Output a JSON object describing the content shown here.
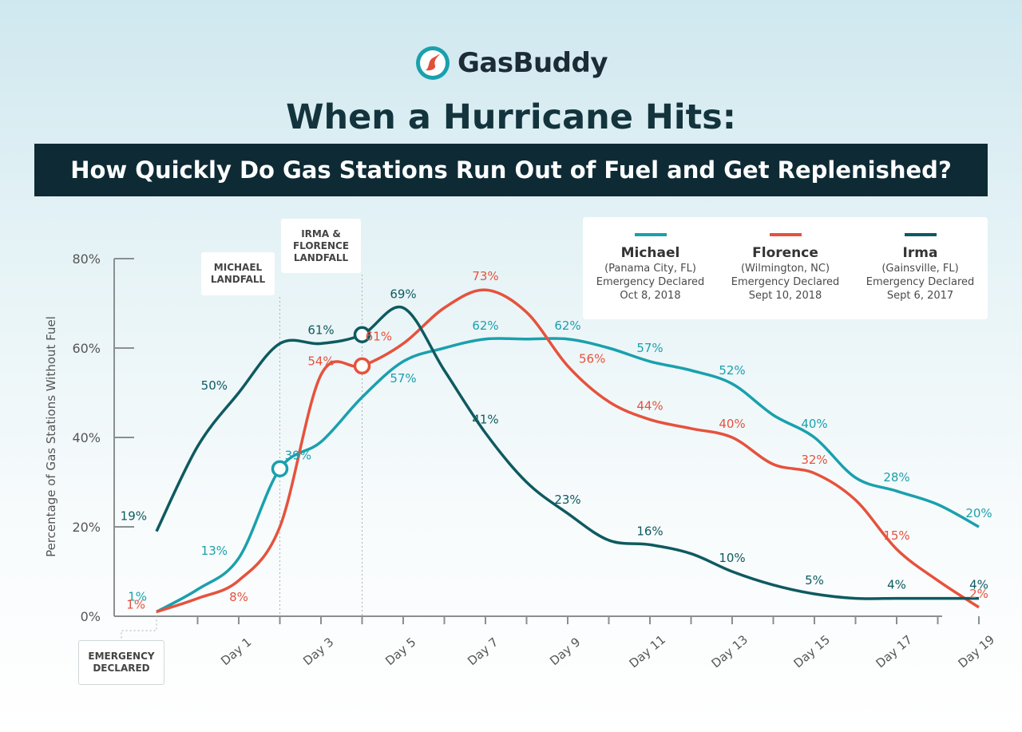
{
  "brand": {
    "name": "GasBuddy",
    "logo_icon": "road-drop-icon",
    "accent": "#e1503b",
    "teal": "#12a0a8"
  },
  "header": {
    "title": "When a Hurricane Hits:",
    "subtitle": "How Quickly Do Gas Stations Run Out of Fuel and Get Replenished?"
  },
  "callouts": {
    "emergency": [
      "EMERGENCY",
      "DECLARED"
    ],
    "michael": [
      "MICHAEL",
      "LANDFALL"
    ],
    "irma_florence": [
      "IRMA &",
      "FLORENCE",
      "LANDFALL"
    ]
  },
  "chart_data": {
    "type": "line",
    "ylabel": "Percentage of Gas Stations Without Fuel",
    "xlabel": "",
    "ylim": [
      0,
      80
    ],
    "yticks": [
      "0%",
      "20%",
      "40%",
      "60%",
      "80%"
    ],
    "xlim": [
      -1,
      19
    ],
    "xticks": [
      "Day 1",
      "Day 3",
      "Day 5",
      "Day 7",
      "Day 9",
      "Day 11",
      "Day 13",
      "Day 15",
      "Day 17",
      "Day 19"
    ],
    "legend": "top-right",
    "series": [
      {
        "name": "Michael",
        "detail": [
          "(Panama City, FL)",
          "Emergency Declared",
          "Oct 8, 2018"
        ],
        "color": "#1aa0ad",
        "points": [
          [
            -1,
            1
          ],
          [
            0,
            6
          ],
          [
            1,
            13
          ],
          [
            2,
            33
          ],
          [
            3,
            39
          ],
          [
            4,
            49
          ],
          [
            5,
            57
          ],
          [
            6,
            60
          ],
          [
            7,
            62
          ],
          [
            8,
            62
          ],
          [
            9,
            62
          ],
          [
            10,
            60
          ],
          [
            11,
            57
          ],
          [
            12,
            55
          ],
          [
            13,
            52
          ],
          [
            14,
            45
          ],
          [
            15,
            40
          ],
          [
            16,
            31
          ],
          [
            17,
            28
          ],
          [
            18,
            25
          ],
          [
            19,
            20
          ]
        ],
        "labels": [
          {
            "x": -1,
            "text": "1%",
            "pos": "above-left"
          },
          {
            "x": 1,
            "text": "13%",
            "pos": "left"
          },
          {
            "x": 3,
            "text": "39%",
            "pos": "below-left"
          },
          {
            "x": 5,
            "text": "57%",
            "pos": "below"
          },
          {
            "x": 7,
            "text": "62%",
            "pos": "above"
          },
          {
            "x": 9,
            "text": "62%",
            "pos": "above"
          },
          {
            "x": 11,
            "text": "57%",
            "pos": "above"
          },
          {
            "x": 13,
            "text": "52%",
            "pos": "above"
          },
          {
            "x": 15,
            "text": "40%",
            "pos": "above"
          },
          {
            "x": 17,
            "text": "28%",
            "pos": "above"
          },
          {
            "x": 19,
            "text": "20%",
            "pos": "above"
          }
        ]
      },
      {
        "name": "Florence",
        "detail": [
          "(Wilmington, NC)",
          "Emergency Declared",
          "Sept 10, 2018"
        ],
        "color": "#e6523c",
        "points": [
          [
            -1,
            1
          ],
          [
            0,
            4
          ],
          [
            1,
            8
          ],
          [
            2,
            20
          ],
          [
            3,
            54
          ],
          [
            4,
            56
          ],
          [
            5,
            61
          ],
          [
            6,
            69
          ],
          [
            7,
            73
          ],
          [
            8,
            68
          ],
          [
            9,
            56
          ],
          [
            10,
            48
          ],
          [
            11,
            44
          ],
          [
            12,
            42
          ],
          [
            13,
            40
          ],
          [
            14,
            34
          ],
          [
            15,
            32
          ],
          [
            16,
            26
          ],
          [
            17,
            15
          ],
          [
            18,
            8
          ],
          [
            19,
            2
          ]
        ],
        "labels": [
          {
            "x": -1,
            "text": "1%",
            "pos": "left"
          },
          {
            "x": 1,
            "text": "8%",
            "pos": "below"
          },
          {
            "x": 3,
            "text": "54%",
            "pos": "above"
          },
          {
            "x": 5,
            "text": "61%",
            "pos": "left"
          },
          {
            "x": 7,
            "text": "73%",
            "pos": "above"
          },
          {
            "x": 9,
            "text": "56%",
            "pos": "right"
          },
          {
            "x": 11,
            "text": "44%",
            "pos": "above"
          },
          {
            "x": 13,
            "text": "40%",
            "pos": "above"
          },
          {
            "x": 15,
            "text": "32%",
            "pos": "above"
          },
          {
            "x": 17,
            "text": "15%",
            "pos": "above"
          },
          {
            "x": 19,
            "text": "2%",
            "pos": "above"
          }
        ]
      },
      {
        "name": "Irma",
        "detail": [
          "(Gainsville, FL)",
          "Emergency Declared",
          "Sept 6, 2017"
        ],
        "color": "#0e5a60",
        "points": [
          [
            -1,
            19
          ],
          [
            0,
            38
          ],
          [
            1,
            50
          ],
          [
            2,
            61
          ],
          [
            3,
            61
          ],
          [
            4,
            63
          ],
          [
            5,
            69
          ],
          [
            6,
            55
          ],
          [
            7,
            41
          ],
          [
            8,
            30
          ],
          [
            9,
            23
          ],
          [
            10,
            17
          ],
          [
            11,
            16
          ],
          [
            12,
            14
          ],
          [
            13,
            10
          ],
          [
            14,
            7
          ],
          [
            15,
            5
          ],
          [
            16,
            4
          ],
          [
            17,
            4
          ],
          [
            18,
            4
          ],
          [
            19,
            4
          ]
        ],
        "labels": [
          {
            "x": -1,
            "text": "19%",
            "pos": "above-left"
          },
          {
            "x": 1,
            "text": "50%",
            "pos": "left"
          },
          {
            "x": 3,
            "text": "61%",
            "pos": "above"
          },
          {
            "x": 5,
            "text": "69%",
            "pos": "above"
          },
          {
            "x": 7,
            "text": "41%",
            "pos": "above"
          },
          {
            "x": 9,
            "text": "23%",
            "pos": "above"
          },
          {
            "x": 11,
            "text": "16%",
            "pos": "above"
          },
          {
            "x": 13,
            "text": "10%",
            "pos": "above"
          },
          {
            "x": 15,
            "text": "5%",
            "pos": "above"
          },
          {
            "x": 17,
            "text": "4%",
            "pos": "above"
          },
          {
            "x": 19,
            "text": "4%",
            "pos": "above"
          }
        ]
      }
    ],
    "markers": [
      {
        "series": "Michael",
        "x": 2,
        "y": 33
      },
      {
        "series": "Florence",
        "x": 4,
        "y": 56
      },
      {
        "series": "Irma",
        "x": 4,
        "y": 63
      }
    ]
  }
}
